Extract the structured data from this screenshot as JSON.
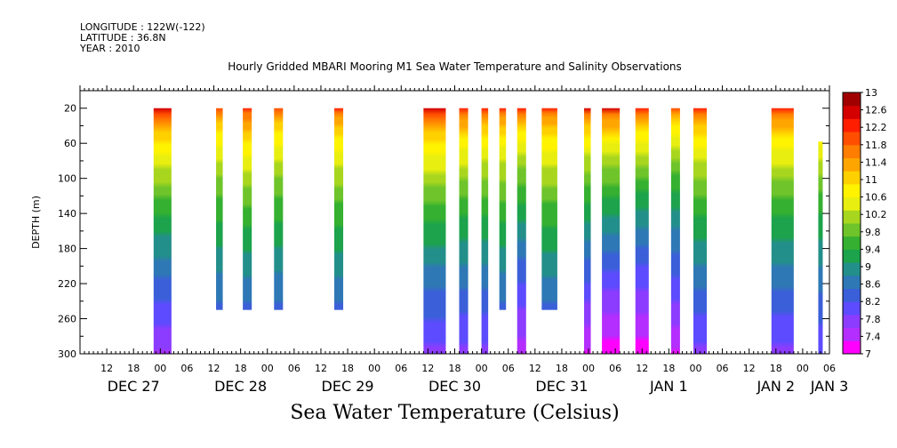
{
  "header": {
    "longitude": "LONGITUDE : 122W(-122)",
    "latitude": "LATITUDE : 36.8N",
    "year": "YEAR : 2010"
  },
  "chart_data": {
    "type": "heatmap",
    "title": "Hourly Gridded MBARI Mooring M1 Sea Water Temperature and Salinity Observations",
    "xlabel": "Sea Water Temperature (Celsius)",
    "ylabel": "DEPTH (m)",
    "xlim_hours": [
      0,
      168
    ],
    "x_start": "DEC 26 12:00",
    "ylim": [
      300,
      0
    ],
    "y_ticks": [
      20,
      60,
      100,
      140,
      180,
      220,
      260,
      300
    ],
    "x_hour_ticks": [
      "12",
      "18",
      "00",
      "06",
      "12",
      "18",
      "00",
      "06",
      "12",
      "18",
      "00",
      "06",
      "12",
      "18",
      "00",
      "06",
      "12",
      "18",
      "00",
      "06",
      "12",
      "18",
      "00",
      "06",
      "12",
      "18",
      "00",
      "06"
    ],
    "date_labels": [
      {
        "label": "DEC 27",
        "hour": 12
      },
      {
        "label": "DEC 28",
        "hour": 36
      },
      {
        "label": "DEC 29",
        "hour": 60
      },
      {
        "label": "DEC 30",
        "hour": 84
      },
      {
        "label": "DEC 31",
        "hour": 108
      },
      {
        "label": "JAN  1",
        "hour": 132
      },
      {
        "label": "JAN  2",
        "hour": 156
      },
      {
        "label": "JAN  3",
        "hour": 168
      }
    ],
    "colorbar": {
      "min": 7,
      "max": 13,
      "labels": [
        "13",
        "12.6",
        "12.2",
        "11.8",
        "11.4",
        "11",
        "10.6",
        "10.2",
        "9.8",
        "9.4",
        "9",
        "8.6",
        "8.2",
        "7.8",
        "7.4",
        "7"
      ],
      "colors": [
        "#ff00ff",
        "#b32eff",
        "#8c3cff",
        "#5d4bff",
        "#3b5fd9",
        "#2e78b5",
        "#238f8a",
        "#1ca34b",
        "#35b030",
        "#6ec42a",
        "#a8d61e",
        "#e8ee10",
        "#fff300",
        "#ffd000",
        "#ffa500",
        "#ff7d00",
        "#ff4e00",
        "#ff1f00",
        "#d40000",
        "#a00000"
      ]
    },
    "bands": [
      {
        "start": 16.5,
        "end": 20.5,
        "top": 20,
        "bottom": 300,
        "surf": 12.6,
        "bot": 7.6
      },
      {
        "start": 30.5,
        "end": 32.0,
        "top": 20,
        "bottom": 250,
        "surf": 12.0,
        "bot": 8.0
      },
      {
        "start": 36.5,
        "end": 38.5,
        "top": 20,
        "bottom": 250,
        "surf": 12.3,
        "bot": 8.0
      },
      {
        "start": 43.5,
        "end": 45.5,
        "top": 20,
        "bottom": 250,
        "surf": 12.0,
        "bot": 8.0
      },
      {
        "start": 57.0,
        "end": 59.0,
        "top": 20,
        "bottom": 250,
        "surf": 12.2,
        "bot": 8.0
      },
      {
        "start": 77.0,
        "end": 82.0,
        "top": 20,
        "bottom": 300,
        "surf": 12.5,
        "bot": 7.8
      },
      {
        "start": 85.0,
        "end": 87.0,
        "top": 20,
        "bottom": 300,
        "surf": 12.3,
        "bot": 7.8
      },
      {
        "start": 90.0,
        "end": 91.5,
        "top": 20,
        "bottom": 300,
        "surf": 12.2,
        "bot": 7.8
      },
      {
        "start": 94.0,
        "end": 95.5,
        "top": 20,
        "bottom": 250,
        "surf": 12.1,
        "bot": 8.0
      },
      {
        "start": 98.0,
        "end": 100.0,
        "top": 20,
        "bottom": 300,
        "surf": 12.2,
        "bot": 7.4
      },
      {
        "start": 103.5,
        "end": 107.0,
        "top": 20,
        "bottom": 250,
        "surf": 12.2,
        "bot": 8.0
      },
      {
        "start": 113.0,
        "end": 114.5,
        "top": 20,
        "bottom": 300,
        "surf": 12.4,
        "bot": 7.3
      },
      {
        "start": 117.0,
        "end": 121.0,
        "top": 20,
        "bottom": 300,
        "surf": 12.5,
        "bot": 7.1
      },
      {
        "start": 124.5,
        "end": 127.5,
        "top": 20,
        "bottom": 300,
        "surf": 12.3,
        "bot": 7.1
      },
      {
        "start": 132.5,
        "end": 134.5,
        "top": 20,
        "bottom": 300,
        "surf": 12.0,
        "bot": 7.3
      },
      {
        "start": 137.5,
        "end": 140.5,
        "top": 20,
        "bottom": 300,
        "surf": 12.2,
        "bot": 7.8
      },
      {
        "start": 155.0,
        "end": 160.0,
        "top": 20,
        "bottom": 300,
        "surf": 12.3,
        "bot": 7.8
      },
      {
        "start": 165.5,
        "end": 166.5,
        "top": 58,
        "bottom": 300,
        "surf": 12.0,
        "bot": 7.9
      }
    ]
  }
}
